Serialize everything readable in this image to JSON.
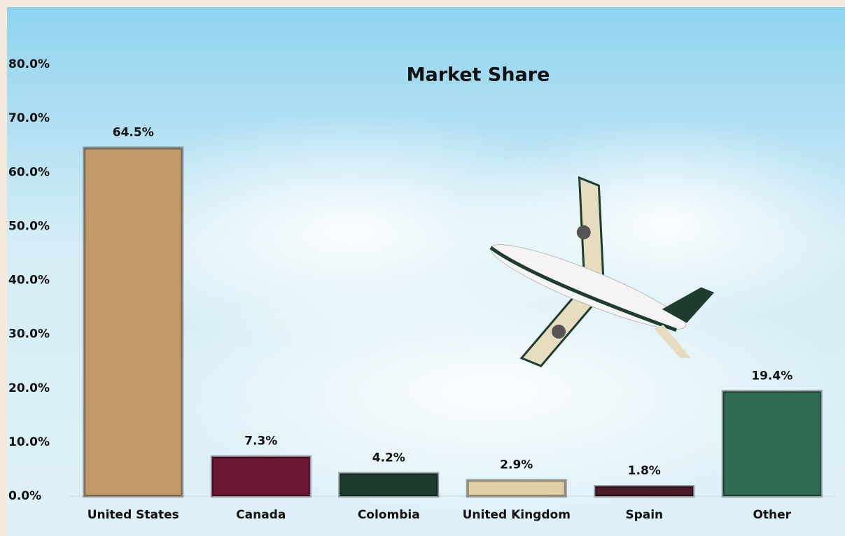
{
  "chart_data": {
    "type": "bar",
    "title": "Market Share",
    "categories": [
      "United States",
      "Canada",
      "Colombia",
      "United Kingdom",
      "Spain",
      "Other"
    ],
    "values": [
      64.5,
      7.3,
      4.2,
      2.9,
      1.8,
      19.4
    ],
    "value_labels": [
      "64.5%",
      "7.3%",
      "4.2%",
      "2.9%",
      "1.8%",
      "19.4%"
    ],
    "colors": [
      "#c19a6b",
      "#6d1635",
      "#1f3d2e",
      "#e0cfa5",
      "#4a1a26",
      "#2e6b52"
    ],
    "ylim": [
      0,
      80
    ],
    "yticks": [
      {
        "value": 0,
        "label": "0.0%"
      },
      {
        "value": 10,
        "label": "10.0%"
      },
      {
        "value": 20,
        "label": "20.0%"
      },
      {
        "value": 30,
        "label": "30.0%"
      },
      {
        "value": 40,
        "label": "40.0%"
      },
      {
        "value": 50,
        "label": "50.0%"
      },
      {
        "value": 60,
        "label": "60.0%"
      },
      {
        "value": 70,
        "label": "70.0%"
      },
      {
        "value": 80,
        "label": "80.0%"
      }
    ],
    "grid": false
  }
}
